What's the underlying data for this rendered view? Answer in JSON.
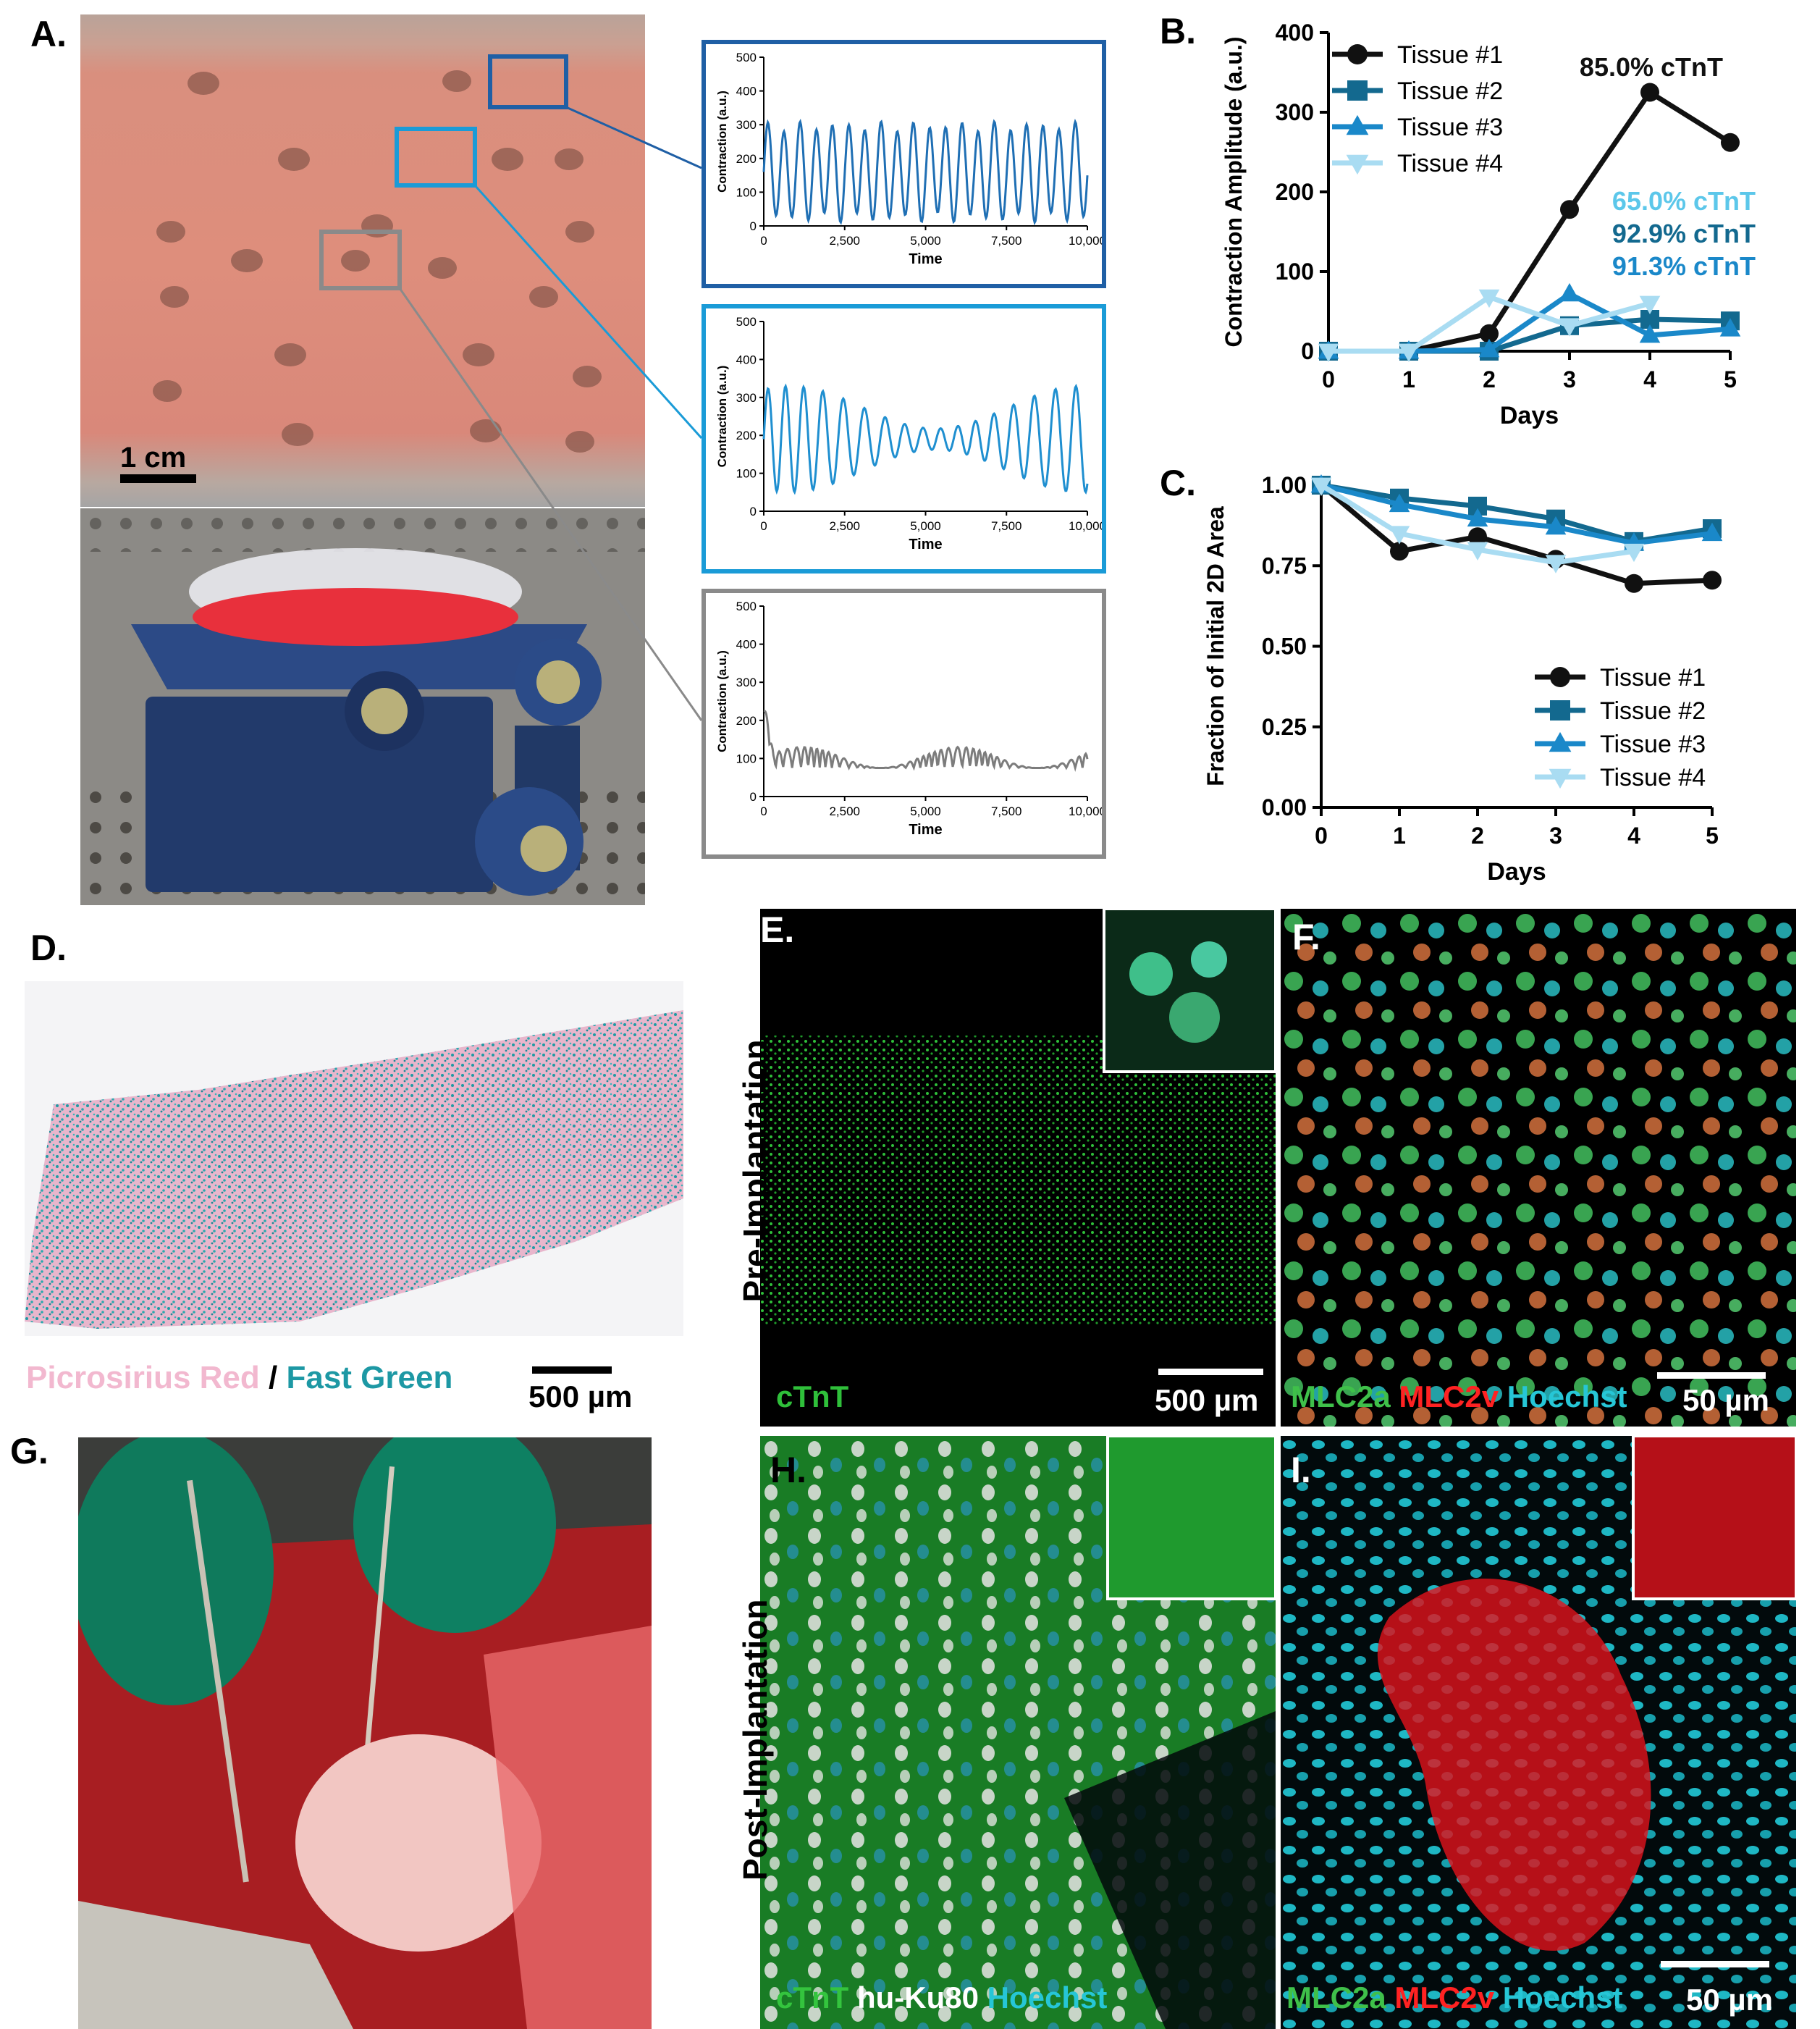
{
  "panels": {
    "A": {
      "label": "A.",
      "scale_bar": "1 cm",
      "traces": [
        {
          "ylabel": "Contraction (a.u.)",
          "xlabel": "Time",
          "border": "#1f5fa5",
          "line": "#1f6fb4",
          "yticks": [
            "0",
            "100",
            "200",
            "300",
            "400",
            "500"
          ],
          "xticks": [
            "0",
            "2,500",
            "5,000",
            "7,500",
            "10,000"
          ]
        },
        {
          "ylabel": "Contraction (a.u.)",
          "xlabel": "Time",
          "border": "#1a9bd7",
          "line": "#1f8fd0",
          "yticks": [
            "0",
            "100",
            "200",
            "300",
            "400",
            "500"
          ],
          "xticks": [
            "0",
            "2,500",
            "5,000",
            "7,500",
            "10,000"
          ]
        },
        {
          "ylabel": "Contraction (a.u.)",
          "xlabel": "Time",
          "border": "#8a8a8a",
          "line": "#7c7c7c",
          "yticks": [
            "0",
            "100",
            "200",
            "300",
            "400",
            "500"
          ],
          "xticks": [
            "0",
            "2,500",
            "5,000",
            "7,500",
            "10,000"
          ]
        }
      ]
    },
    "B": {
      "label": "B."
    },
    "C": {
      "label": "C."
    },
    "D": {
      "label": "D.",
      "stain1": "Picrosirius Red",
      "sep": "/",
      "stain2": "Fast Green",
      "scale_bar": "500 µm"
    },
    "E": {
      "label": "E.",
      "side": "Pre-Implantation",
      "marker": "cTnT",
      "scale_bar": "500 µm"
    },
    "F": {
      "label": "F.",
      "m1": "MLC2a",
      "m2": "MLC2v",
      "m3": "Hoechst",
      "scale_bar": "50 µm"
    },
    "G": {
      "label": "G."
    },
    "H": {
      "label": "H.",
      "side": "Post-Implantation",
      "m1": "cTnT",
      "m2": "hu-Ku80",
      "m3": "Hoechst"
    },
    "I": {
      "label": "I.",
      "m1": "MLC2a",
      "m2": "MLC2v",
      "m3": "Hoechst",
      "scale_bar": "50 µm"
    }
  },
  "chart_data": [
    {
      "type": "line",
      "panel": "B",
      "xlabel": "Days",
      "ylabel": "Contraction Amplitude (a.u.)",
      "x": [
        0,
        1,
        2,
        3,
        4,
        5
      ],
      "xlim": [
        0,
        5
      ],
      "ylim": [
        0,
        400
      ],
      "yticks": [
        0,
        100,
        200,
        300,
        400
      ],
      "legend": "top-left",
      "series": [
        {
          "name": "Tissue #1",
          "color": "#111111",
          "marker": "circle",
          "values": [
            0,
            0,
            22,
            178,
            325,
            262
          ]
        },
        {
          "name": "Tissue #2",
          "color": "#13698f",
          "marker": "square",
          "values": [
            0,
            0,
            0,
            32,
            40,
            38
          ]
        },
        {
          "name": "Tissue #3",
          "color": "#1a88c9",
          "marker": "triangle-up",
          "values": [
            0,
            0,
            2,
            72,
            20,
            28
          ]
        },
        {
          "name": "Tissue #4",
          "color": "#a9dcf2",
          "marker": "triangle-down",
          "values": [
            0,
            0,
            68,
            32,
            60,
            null
          ]
        }
      ],
      "annotations": [
        {
          "text": "85.0% cTnT",
          "color": "#111111"
        },
        {
          "text": "65.0% cTnT",
          "color": "#5cc7ea"
        },
        {
          "text": "92.9% cTnT",
          "color": "#13698f"
        },
        {
          "text": "91.3% cTnT",
          "color": "#1a88c9"
        }
      ]
    },
    {
      "type": "line",
      "panel": "C",
      "xlabel": "Days",
      "ylabel": "Fraction of Initial 2D Area",
      "x": [
        0,
        1,
        2,
        3,
        4,
        5
      ],
      "xlim": [
        0,
        5
      ],
      "ylim": [
        0,
        1
      ],
      "yticks": [
        "0.00",
        "0.25",
        "0.50",
        "0.75",
        "1.00"
      ],
      "legend": "bottom-right",
      "series": [
        {
          "name": "Tissue #1",
          "color": "#111111",
          "marker": "circle",
          "values": [
            1.0,
            0.795,
            0.84,
            0.77,
            0.695,
            0.705
          ]
        },
        {
          "name": "Tissue #2",
          "color": "#13698f",
          "marker": "square",
          "values": [
            1.0,
            0.96,
            0.935,
            0.895,
            0.825,
            0.865
          ]
        },
        {
          "name": "Tissue #3",
          "color": "#1a88c9",
          "marker": "triangle-up",
          "values": [
            1.0,
            0.94,
            0.895,
            0.87,
            0.82,
            0.85
          ]
        },
        {
          "name": "Tissue #4",
          "color": "#a9dcf2",
          "marker": "triangle-down",
          "values": [
            1.0,
            0.85,
            0.8,
            0.76,
            0.795,
            null
          ]
        }
      ]
    }
  ]
}
